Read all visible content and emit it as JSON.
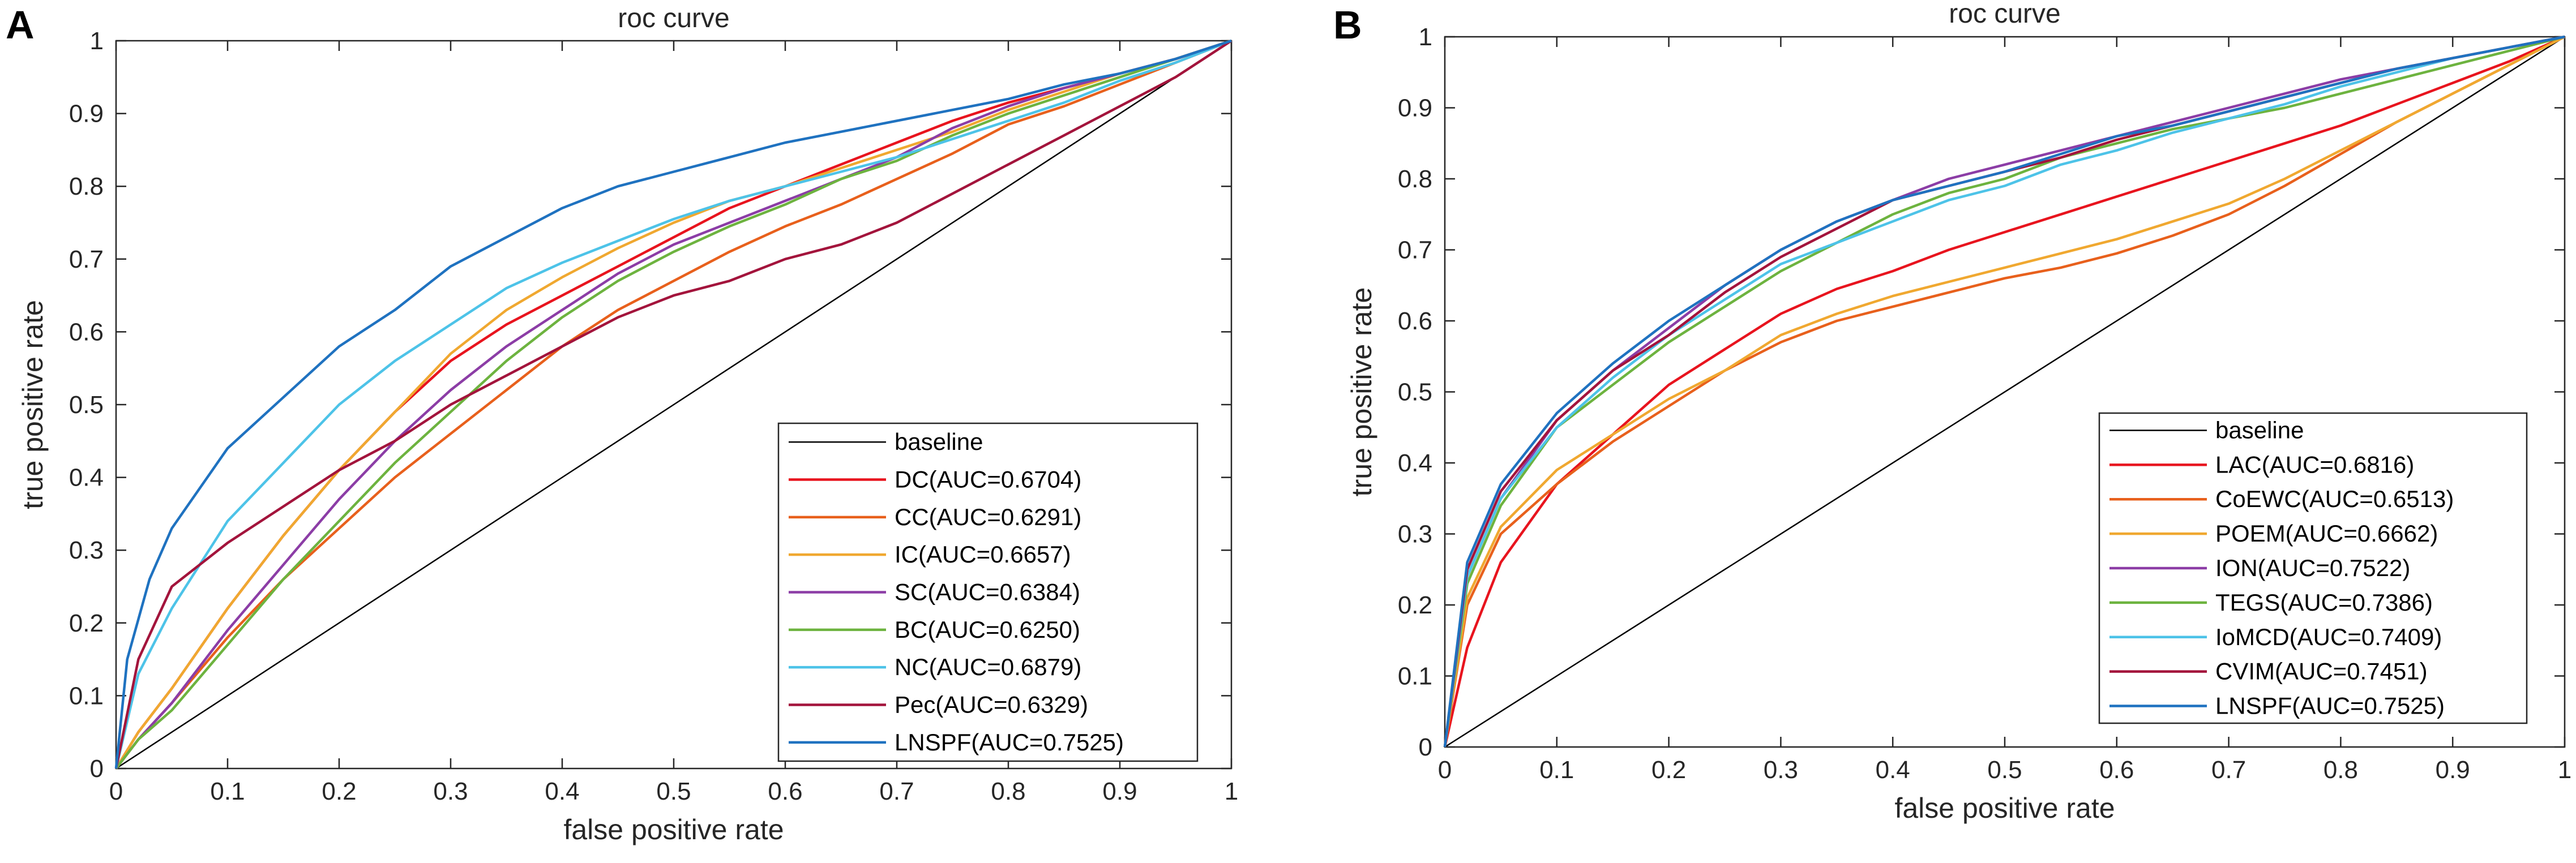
{
  "chart_data": [
    {
      "panel": "A",
      "type": "line",
      "title": "roc curve",
      "xlabel": "false positive rate",
      "ylabel": "true positive rate",
      "xlim": [
        0,
        1
      ],
      "ylim": [
        0,
        1
      ],
      "xticks": [
        "0",
        "0.1",
        "0.2",
        "0.3",
        "0.4",
        "0.5",
        "0.6",
        "0.7",
        "0.8",
        "0.9",
        "1"
      ],
      "yticks": [
        "0",
        "0.1",
        "0.2",
        "0.3",
        "0.4",
        "0.5",
        "0.6",
        "0.7",
        "0.8",
        "0.9",
        "1"
      ],
      "legend_position": "bottom-right",
      "series": [
        {
          "name": "baseline",
          "color": "#000000",
          "x": [
            0,
            1
          ],
          "y": [
            0,
            1
          ]
        },
        {
          "name": "DC(AUC=0.6704)",
          "color": "#e8141e",
          "x": [
            0,
            0.02,
            0.05,
            0.1,
            0.15,
            0.2,
            0.25,
            0.3,
            0.35,
            0.4,
            0.45,
            0.5,
            0.55,
            0.6,
            0.65,
            0.7,
            0.75,
            0.8,
            0.85,
            0.9,
            0.95,
            1
          ],
          "y": [
            0,
            0.05,
            0.11,
            0.22,
            0.32,
            0.41,
            0.49,
            0.56,
            0.61,
            0.65,
            0.69,
            0.73,
            0.77,
            0.8,
            0.83,
            0.86,
            0.89,
            0.915,
            0.935,
            0.955,
            0.975,
            1
          ]
        },
        {
          "name": "CC(AUC=0.6291)",
          "color": "#e8601c",
          "x": [
            0,
            0.02,
            0.05,
            0.1,
            0.15,
            0.2,
            0.25,
            0.3,
            0.35,
            0.4,
            0.45,
            0.5,
            0.55,
            0.6,
            0.65,
            0.7,
            0.75,
            0.8,
            0.85,
            0.9,
            0.95,
            1
          ],
          "y": [
            0,
            0.04,
            0.09,
            0.18,
            0.26,
            0.33,
            0.4,
            0.46,
            0.52,
            0.58,
            0.63,
            0.67,
            0.71,
            0.745,
            0.775,
            0.81,
            0.845,
            0.885,
            0.91,
            0.94,
            0.97,
            1
          ]
        },
        {
          "name": "IC(AUC=0.6657)",
          "color": "#f0a830",
          "x": [
            0,
            0.02,
            0.05,
            0.1,
            0.15,
            0.2,
            0.25,
            0.3,
            0.35,
            0.4,
            0.45,
            0.5,
            0.55,
            0.6,
            0.65,
            0.7,
            0.75,
            0.8,
            0.85,
            0.9,
            0.95,
            1
          ],
          "y": [
            0,
            0.05,
            0.11,
            0.22,
            0.32,
            0.41,
            0.49,
            0.57,
            0.63,
            0.675,
            0.715,
            0.75,
            0.78,
            0.8,
            0.825,
            0.85,
            0.875,
            0.905,
            0.93,
            0.955,
            0.975,
            1
          ]
        },
        {
          "name": "SC(AUC=0.6384)",
          "color": "#8c3da6",
          "x": [
            0,
            0.02,
            0.05,
            0.1,
            0.15,
            0.2,
            0.25,
            0.3,
            0.35,
            0.4,
            0.45,
            0.5,
            0.55,
            0.6,
            0.65,
            0.7,
            0.75,
            0.8,
            0.85,
            0.9,
            0.95,
            1
          ],
          "y": [
            0,
            0.04,
            0.09,
            0.19,
            0.28,
            0.37,
            0.45,
            0.52,
            0.58,
            0.63,
            0.68,
            0.72,
            0.75,
            0.78,
            0.81,
            0.84,
            0.88,
            0.91,
            0.935,
            0.955,
            0.975,
            1
          ]
        },
        {
          "name": "BC(AUC=0.6250)",
          "color": "#6db33f",
          "x": [
            0,
            0.02,
            0.05,
            0.1,
            0.15,
            0.2,
            0.25,
            0.3,
            0.35,
            0.4,
            0.45,
            0.5,
            0.55,
            0.6,
            0.65,
            0.7,
            0.75,
            0.8,
            0.85,
            0.9,
            0.95,
            1
          ],
          "y": [
            0,
            0.04,
            0.08,
            0.17,
            0.26,
            0.34,
            0.42,
            0.49,
            0.56,
            0.62,
            0.67,
            0.71,
            0.745,
            0.775,
            0.81,
            0.835,
            0.87,
            0.9,
            0.925,
            0.95,
            0.975,
            1
          ]
        },
        {
          "name": "NC(AUC=0.6879)",
          "color": "#4dc3e8",
          "x": [
            0,
            0.02,
            0.05,
            0.1,
            0.15,
            0.2,
            0.25,
            0.3,
            0.35,
            0.4,
            0.45,
            0.5,
            0.55,
            0.6,
            0.65,
            0.7,
            0.75,
            0.8,
            0.85,
            0.9,
            0.95,
            1
          ],
          "y": [
            0,
            0.13,
            0.22,
            0.34,
            0.42,
            0.5,
            0.56,
            0.61,
            0.66,
            0.695,
            0.725,
            0.755,
            0.78,
            0.8,
            0.82,
            0.84,
            0.865,
            0.89,
            0.915,
            0.945,
            0.97,
            1
          ]
        },
        {
          "name": "Pec(AUC=0.6329)",
          "color": "#a3143c",
          "x": [
            0,
            0.02,
            0.05,
            0.1,
            0.15,
            0.2,
            0.25,
            0.3,
            0.35,
            0.4,
            0.45,
            0.5,
            0.55,
            0.6,
            0.65,
            0.7,
            0.75,
            0.8,
            0.85,
            0.9,
            0.95,
            1
          ],
          "y": [
            0,
            0.15,
            0.25,
            0.31,
            0.36,
            0.41,
            0.45,
            0.5,
            0.54,
            0.58,
            0.62,
            0.65,
            0.67,
            0.7,
            0.72,
            0.75,
            0.79,
            0.83,
            0.87,
            0.91,
            0.95,
            1
          ]
        },
        {
          "name": "LNSPF(AUC=0.7525)",
          "color": "#1f72c0",
          "x": [
            0,
            0.01,
            0.03,
            0.05,
            0.1,
            0.15,
            0.2,
            0.25,
            0.3,
            0.35,
            0.4,
            0.45,
            0.5,
            0.55,
            0.6,
            0.65,
            0.7,
            0.75,
            0.8,
            0.85,
            0.9,
            0.95,
            1
          ],
          "y": [
            0,
            0.15,
            0.26,
            0.33,
            0.44,
            0.51,
            0.58,
            0.63,
            0.69,
            0.73,
            0.77,
            0.8,
            0.82,
            0.84,
            0.86,
            0.875,
            0.89,
            0.905,
            0.92,
            0.94,
            0.955,
            0.975,
            1
          ]
        }
      ]
    },
    {
      "panel": "B",
      "type": "line",
      "title": "roc curve",
      "xlabel": "false positive rate",
      "ylabel": "true positive rate",
      "xlim": [
        0,
        1
      ],
      "ylim": [
        0,
        1
      ],
      "xticks": [
        "0",
        "0.1",
        "0.2",
        "0.3",
        "0.4",
        "0.5",
        "0.6",
        "0.7",
        "0.8",
        "0.9",
        "1"
      ],
      "yticks": [
        "0",
        "0.1",
        "0.2",
        "0.3",
        "0.4",
        "0.5",
        "0.6",
        "0.7",
        "0.8",
        "0.9",
        "1"
      ],
      "legend_position": "bottom-right",
      "series": [
        {
          "name": "baseline",
          "color": "#000000",
          "x": [
            0,
            1
          ],
          "y": [
            0,
            1
          ]
        },
        {
          "name": "LAC(AUC=0.6816)",
          "color": "#e8141e",
          "x": [
            0,
            0.02,
            0.05,
            0.1,
            0.15,
            0.2,
            0.25,
            0.3,
            0.35,
            0.4,
            0.45,
            0.5,
            0.55,
            0.6,
            0.65,
            0.7,
            0.75,
            0.8,
            0.85,
            0.9,
            0.95,
            1
          ],
          "y": [
            0,
            0.14,
            0.26,
            0.37,
            0.44,
            0.51,
            0.56,
            0.61,
            0.645,
            0.67,
            0.7,
            0.725,
            0.75,
            0.775,
            0.8,
            0.825,
            0.85,
            0.875,
            0.905,
            0.935,
            0.965,
            1
          ]
        },
        {
          "name": "CoEWC(AUC=0.6513)",
          "color": "#e8601c",
          "x": [
            0,
            0.02,
            0.05,
            0.1,
            0.15,
            0.2,
            0.25,
            0.3,
            0.35,
            0.4,
            0.45,
            0.5,
            0.55,
            0.6,
            0.65,
            0.7,
            0.75,
            0.8,
            0.85,
            0.9,
            0.95,
            1
          ],
          "y": [
            0,
            0.2,
            0.3,
            0.37,
            0.43,
            0.48,
            0.53,
            0.57,
            0.6,
            0.62,
            0.64,
            0.66,
            0.675,
            0.695,
            0.72,
            0.75,
            0.79,
            0.835,
            0.88,
            0.92,
            0.96,
            1
          ]
        },
        {
          "name": "POEM(AUC=0.6662)",
          "color": "#f0a830",
          "x": [
            0,
            0.02,
            0.05,
            0.1,
            0.15,
            0.2,
            0.25,
            0.3,
            0.35,
            0.4,
            0.45,
            0.5,
            0.55,
            0.6,
            0.65,
            0.7,
            0.75,
            0.8,
            0.85,
            0.9,
            0.95,
            1
          ],
          "y": [
            0,
            0.21,
            0.31,
            0.39,
            0.44,
            0.49,
            0.53,
            0.58,
            0.61,
            0.635,
            0.655,
            0.675,
            0.695,
            0.715,
            0.74,
            0.765,
            0.8,
            0.84,
            0.88,
            0.92,
            0.96,
            1
          ]
        },
        {
          "name": "ION(AUC=0.7522)",
          "color": "#8c3da6",
          "x": [
            0,
            0.02,
            0.05,
            0.1,
            0.15,
            0.2,
            0.25,
            0.3,
            0.35,
            0.4,
            0.45,
            0.5,
            0.55,
            0.6,
            0.65,
            0.7,
            0.75,
            0.8,
            0.85,
            0.9,
            0.95,
            1
          ],
          "y": [
            0,
            0.24,
            0.35,
            0.46,
            0.53,
            0.59,
            0.65,
            0.7,
            0.74,
            0.77,
            0.8,
            0.82,
            0.84,
            0.86,
            0.88,
            0.9,
            0.92,
            0.94,
            0.955,
            0.97,
            0.985,
            1
          ]
        },
        {
          "name": "TEGS(AUC=0.7386)",
          "color": "#6db33f",
          "x": [
            0,
            0.02,
            0.05,
            0.1,
            0.15,
            0.2,
            0.25,
            0.3,
            0.35,
            0.4,
            0.45,
            0.5,
            0.55,
            0.6,
            0.65,
            0.7,
            0.75,
            0.8,
            0.85,
            0.9,
            0.95,
            1
          ],
          "y": [
            0,
            0.23,
            0.34,
            0.45,
            0.51,
            0.57,
            0.62,
            0.67,
            0.71,
            0.75,
            0.78,
            0.8,
            0.83,
            0.85,
            0.87,
            0.885,
            0.9,
            0.92,
            0.94,
            0.96,
            0.98,
            1
          ]
        },
        {
          "name": "IoMCD(AUC=0.7409)",
          "color": "#4dc3e8",
          "x": [
            0,
            0.02,
            0.05,
            0.1,
            0.15,
            0.2,
            0.25,
            0.3,
            0.35,
            0.4,
            0.45,
            0.5,
            0.55,
            0.6,
            0.65,
            0.7,
            0.75,
            0.8,
            0.85,
            0.9,
            0.95,
            1
          ],
          "y": [
            0,
            0.24,
            0.35,
            0.45,
            0.52,
            0.58,
            0.63,
            0.68,
            0.71,
            0.74,
            0.77,
            0.79,
            0.82,
            0.84,
            0.865,
            0.885,
            0.905,
            0.93,
            0.95,
            0.97,
            0.985,
            1
          ]
        },
        {
          "name": "CVIM(AUC=0.7451)",
          "color": "#a3143c",
          "x": [
            0,
            0.02,
            0.05,
            0.1,
            0.15,
            0.2,
            0.25,
            0.3,
            0.35,
            0.4,
            0.45,
            0.5,
            0.55,
            0.6,
            0.65,
            0.7,
            0.75,
            0.8,
            0.85,
            0.9,
            0.95,
            1
          ],
          "y": [
            0,
            0.25,
            0.36,
            0.46,
            0.53,
            0.58,
            0.64,
            0.69,
            0.73,
            0.77,
            0.79,
            0.81,
            0.83,
            0.855,
            0.875,
            0.895,
            0.915,
            0.935,
            0.955,
            0.97,
            0.985,
            1
          ]
        },
        {
          "name": "LNSPF(AUC=0.7525)",
          "color": "#1f72c0",
          "x": [
            0,
            0.02,
            0.05,
            0.1,
            0.15,
            0.2,
            0.25,
            0.3,
            0.35,
            0.4,
            0.45,
            0.5,
            0.55,
            0.6,
            0.65,
            0.7,
            0.75,
            0.8,
            0.85,
            0.9,
            0.95,
            1
          ],
          "y": [
            0,
            0.26,
            0.37,
            0.47,
            0.54,
            0.6,
            0.65,
            0.7,
            0.74,
            0.77,
            0.79,
            0.81,
            0.835,
            0.86,
            0.875,
            0.895,
            0.915,
            0.935,
            0.955,
            0.97,
            0.985,
            1
          ]
        }
      ]
    }
  ]
}
